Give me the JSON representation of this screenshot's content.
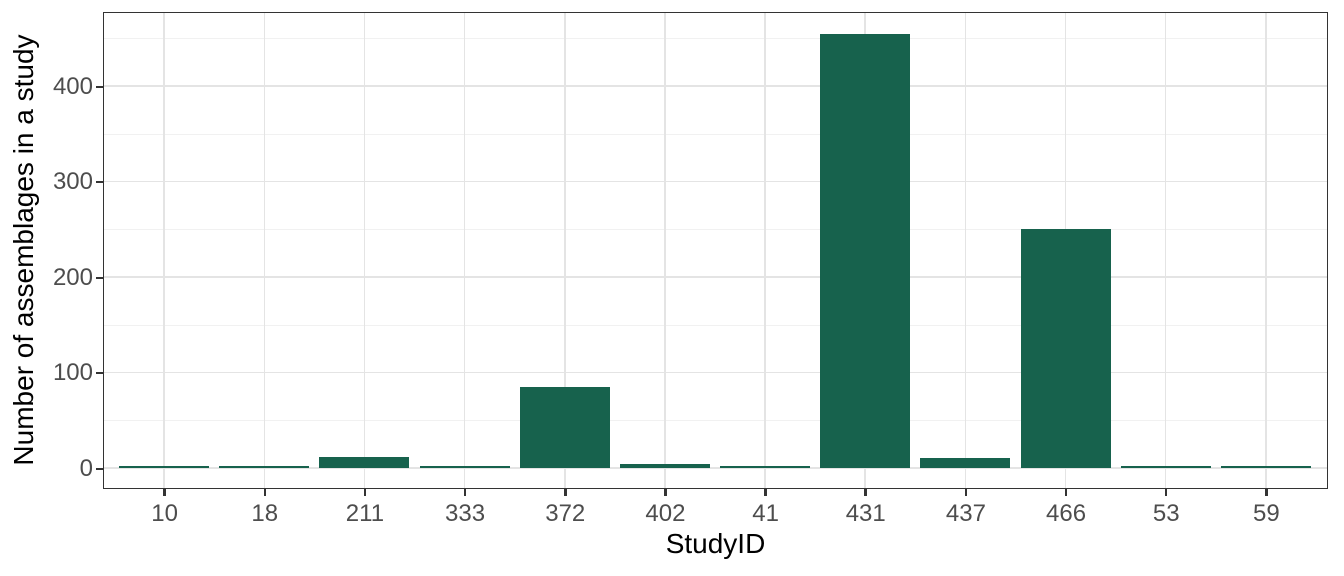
{
  "chart_data": {
    "type": "bar",
    "title": "",
    "xlabel": "StudyID",
    "ylabel": "Number of assemblages in a study",
    "categories": [
      "10",
      "18",
      "211",
      "333",
      "372",
      "402",
      "41",
      "431",
      "437",
      "466",
      "53",
      "59"
    ],
    "values": [
      2,
      2,
      12,
      2,
      85,
      4,
      2,
      455,
      10,
      250,
      2,
      2
    ],
    "yticks": [
      0,
      100,
      200,
      300,
      400
    ],
    "yminor_ticks": [
      50,
      150,
      250,
      350,
      450
    ],
    "ylim": [
      0,
      478
    ],
    "grid": "horizontal major+minor, vertical major at category centers",
    "legend": false,
    "colors": {
      "bar_fill": "#17624D",
      "tick_label": "#4D4D4D",
      "axis_title": "#000000",
      "grid_major": "#E4E4E4",
      "grid_minor": "#F1F1F1",
      "panel_border": "#333333",
      "tick_mark": "#333333",
      "background": "#FFFFFF"
    }
  }
}
